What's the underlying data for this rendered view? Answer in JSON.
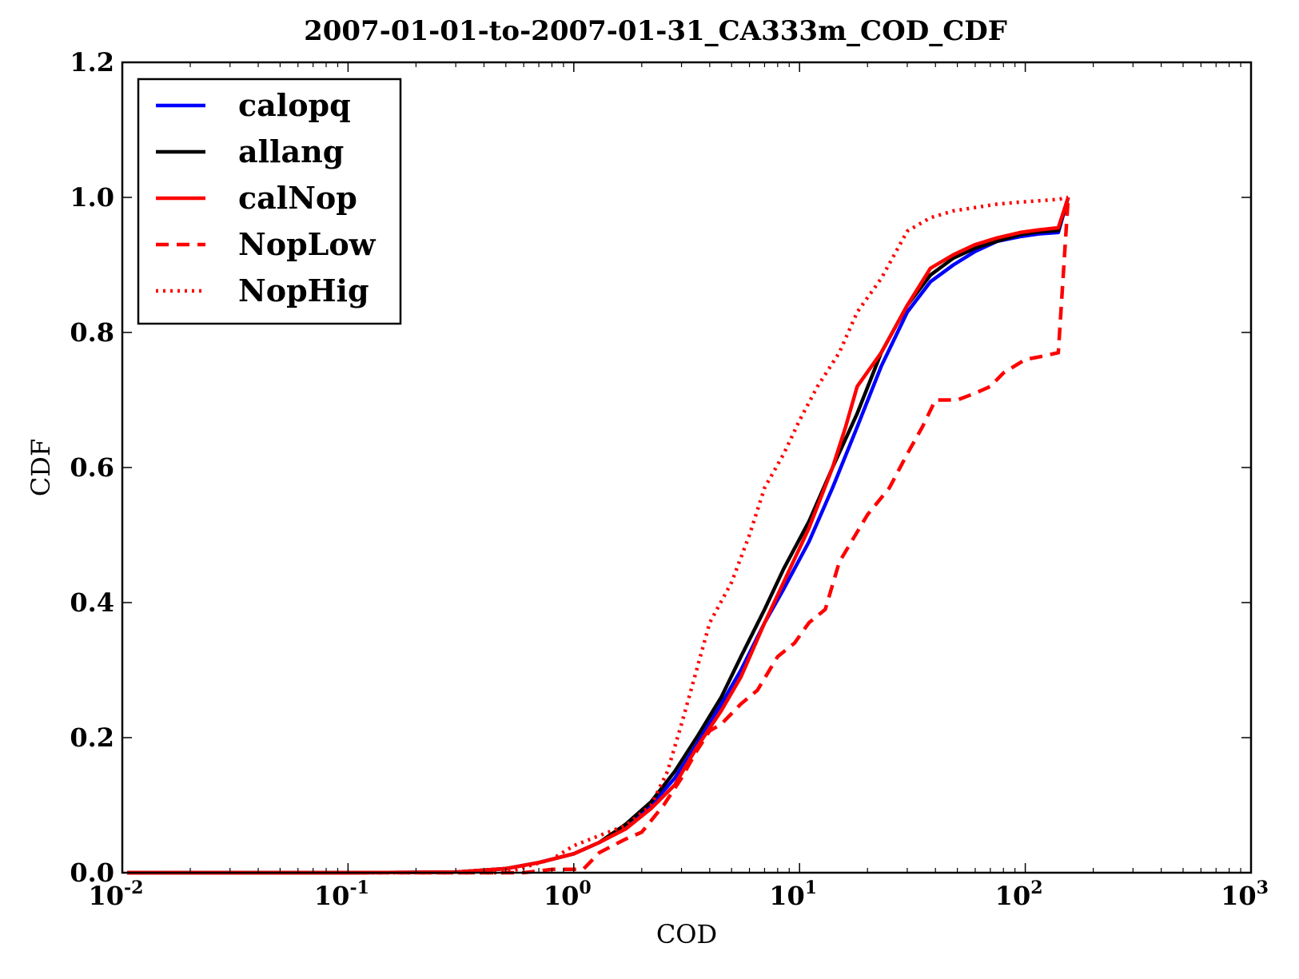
{
  "chart_data": {
    "type": "line",
    "title": "2007-01-01-to-2007-01-31_CA333m_COD_CDF",
    "xlabel": "COD",
    "ylabel": "CDF",
    "xscale": "log",
    "xlim": [
      0.01,
      1000
    ],
    "ylim": [
      0.0,
      1.2
    ],
    "grid": false,
    "legend_position": "top-left",
    "x_ticks": [
      {
        "value": 0.01,
        "base": "10",
        "exp": "-2"
      },
      {
        "value": 0.1,
        "base": "10",
        "exp": "-1"
      },
      {
        "value": 1,
        "base": "10",
        "exp": "0"
      },
      {
        "value": 10,
        "base": "10",
        "exp": "1"
      },
      {
        "value": 100,
        "base": "10",
        "exp": "2"
      },
      {
        "value": 1000,
        "base": "10",
        "exp": "3"
      }
    ],
    "y_ticks": [
      {
        "value": 0.0,
        "label": "0.0"
      },
      {
        "value": 0.2,
        "label": "0.2"
      },
      {
        "value": 0.4,
        "label": "0.4"
      },
      {
        "value": 0.6,
        "label": "0.6"
      },
      {
        "value": 0.8,
        "label": "0.8"
      },
      {
        "value": 1.0,
        "label": "1.0"
      },
      {
        "value": 1.2,
        "label": "1.2"
      }
    ],
    "series": [
      {
        "name": "calopq",
        "color": "#0000ff",
        "style": "solid",
        "x": [
          0.0105,
          0.1,
          0.3,
          0.5,
          0.7,
          1.0,
          1.3,
          1.7,
          2.2,
          2.8,
          3.5,
          4.5,
          5.5,
          7.0,
          8.5,
          11,
          14,
          18,
          23,
          30,
          38,
          48,
          60,
          75,
          95,
          115,
          140,
          155
        ],
        "y": [
          0.0,
          0.0,
          0.001,
          0.006,
          0.015,
          0.028,
          0.045,
          0.07,
          0.1,
          0.14,
          0.19,
          0.25,
          0.3,
          0.37,
          0.42,
          0.49,
          0.57,
          0.66,
          0.75,
          0.83,
          0.875,
          0.9,
          0.92,
          0.935,
          0.942,
          0.946,
          0.948,
          1.0
        ]
      },
      {
        "name": "allang",
        "color": "#000000",
        "style": "solid",
        "x": [
          0.0105,
          0.1,
          0.3,
          0.5,
          0.7,
          1.0,
          1.3,
          1.7,
          2.2,
          2.8,
          3.5,
          4.5,
          5.5,
          7.0,
          8.5,
          11,
          14,
          18,
          23,
          30,
          38,
          48,
          60,
          75,
          95,
          115,
          140,
          155
        ],
        "y": [
          0.0,
          0.0,
          0.001,
          0.006,
          0.015,
          0.028,
          0.045,
          0.072,
          0.105,
          0.15,
          0.2,
          0.26,
          0.32,
          0.39,
          0.45,
          0.52,
          0.6,
          0.68,
          0.77,
          0.84,
          0.885,
          0.91,
          0.925,
          0.935,
          0.945,
          0.949,
          0.951,
          1.0
        ]
      },
      {
        "name": "calNop",
        "color": "#ff0000",
        "style": "solid",
        "x": [
          0.0105,
          0.1,
          0.3,
          0.5,
          0.7,
          1.0,
          1.3,
          1.7,
          2.2,
          2.8,
          3.5,
          4.5,
          5.5,
          7.0,
          8.5,
          11,
          14,
          16,
          18,
          23,
          30,
          38,
          48,
          60,
          75,
          95,
          115,
          140,
          155
        ],
        "y": [
          0.0,
          0.0,
          0.001,
          0.006,
          0.015,
          0.028,
          0.045,
          0.065,
          0.095,
          0.13,
          0.185,
          0.24,
          0.29,
          0.37,
          0.43,
          0.51,
          0.6,
          0.66,
          0.72,
          0.77,
          0.84,
          0.895,
          0.915,
          0.93,
          0.94,
          0.948,
          0.952,
          0.955,
          1.0
        ]
      },
      {
        "name": "NopLow",
        "color": "#ff0000",
        "style": "dashed",
        "x": [
          0.0105,
          0.6,
          0.8,
          1.1,
          1.3,
          1.7,
          2.0,
          2.5,
          3.0,
          3.5,
          4.0,
          4.5,
          5.5,
          6.5,
          8.0,
          9.5,
          11,
          13,
          15,
          20,
          25,
          30,
          35,
          40,
          50,
          60,
          70,
          80,
          100,
          120,
          140,
          155
        ],
        "y": [
          0.0,
          0.0,
          0.005,
          0.005,
          0.03,
          0.05,
          0.06,
          0.1,
          0.14,
          0.18,
          0.21,
          0.22,
          0.25,
          0.27,
          0.32,
          0.34,
          0.37,
          0.39,
          0.46,
          0.53,
          0.57,
          0.62,
          0.66,
          0.7,
          0.7,
          0.71,
          0.72,
          0.74,
          0.76,
          0.765,
          0.77,
          1.0
        ]
      },
      {
        "name": "NopHig",
        "color": "#ff0000",
        "style": "dotted",
        "x": [
          0.0105,
          0.5,
          0.8,
          1.0,
          1.3,
          1.7,
          2.2,
          2.6,
          3.0,
          3.5,
          4.0,
          5.0,
          6.0,
          7.0,
          8.5,
          10,
          12,
          15,
          18,
          23,
          30,
          38,
          48,
          60,
          75,
          95,
          115,
          140,
          155
        ],
        "y": [
          0.0,
          0.0,
          0.02,
          0.04,
          0.055,
          0.07,
          0.1,
          0.15,
          0.22,
          0.3,
          0.37,
          0.43,
          0.5,
          0.57,
          0.62,
          0.67,
          0.72,
          0.77,
          0.83,
          0.88,
          0.95,
          0.97,
          0.98,
          0.985,
          0.99,
          0.993,
          0.995,
          0.997,
          1.0
        ]
      }
    ]
  }
}
